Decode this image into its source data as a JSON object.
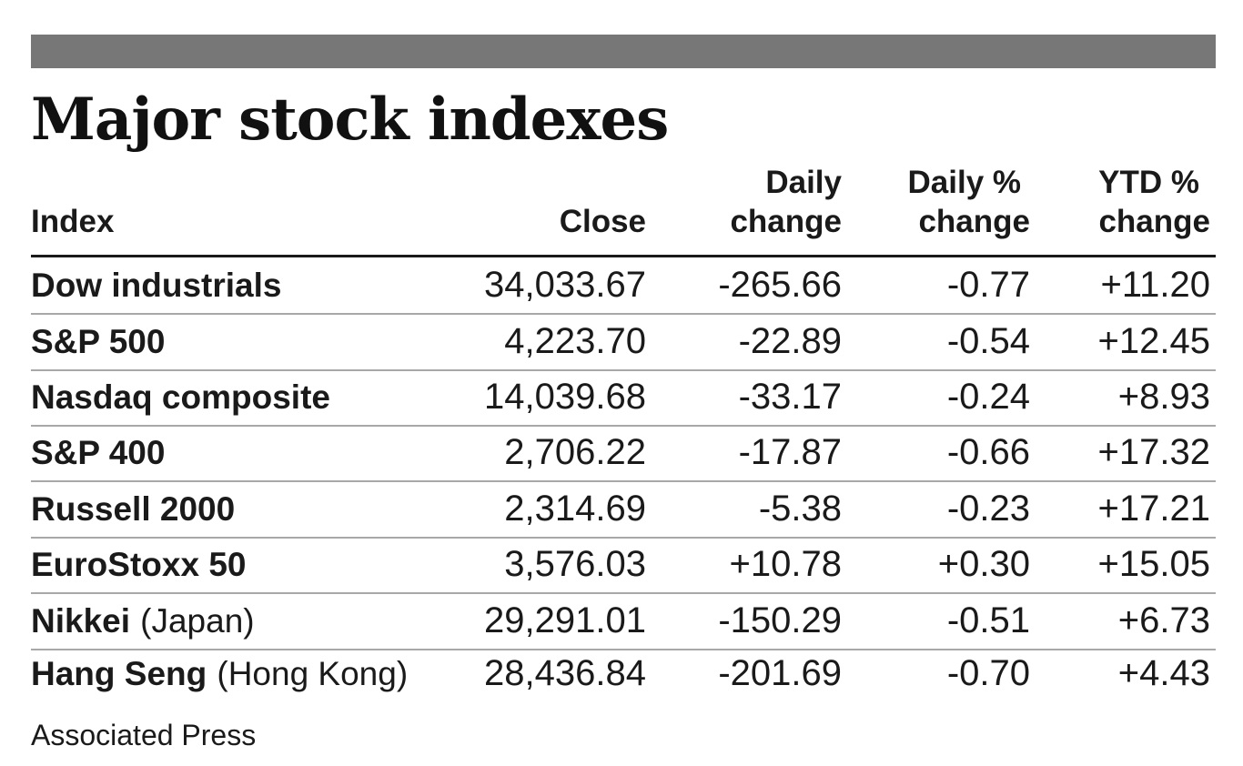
{
  "title": "Major stock indexes",
  "columns": {
    "index": "Index",
    "close": "Close",
    "daily_change": [
      "Daily",
      "change"
    ],
    "daily_pct": [
      "Daily %",
      "change"
    ],
    "ytd_pct": [
      "YTD %",
      "change"
    ]
  },
  "rows": [
    {
      "name": "Dow industrials",
      "region": "",
      "close": "34,033.67",
      "daily_change": "-265.66",
      "daily_pct": "-0.77",
      "ytd_pct": "+11.20"
    },
    {
      "name": "S&P 500",
      "region": "",
      "close": "4,223.70",
      "daily_change": "-22.89",
      "daily_pct": "-0.54",
      "ytd_pct": "+12.45"
    },
    {
      "name": "Nasdaq composite",
      "region": "",
      "close": "14,039.68",
      "daily_change": "-33.17",
      "daily_pct": "-0.24",
      "ytd_pct": "+8.93"
    },
    {
      "name": "S&P 400",
      "region": "",
      "close": "2,706.22",
      "daily_change": "-17.87",
      "daily_pct": "-0.66",
      "ytd_pct": "+17.32"
    },
    {
      "name": "Russell 2000",
      "region": "",
      "close": "2,314.69",
      "daily_change": "-5.38",
      "daily_pct": "-0.23",
      "ytd_pct": "+17.21"
    },
    {
      "name": "EuroStoxx 50",
      "region": "",
      "close": "3,576.03",
      "daily_change": "+10.78",
      "daily_pct": "+0.30",
      "ytd_pct": "+15.05"
    },
    {
      "name": "Nikkei",
      "region": "(Japan)",
      "close": "29,291.01",
      "daily_change": "-150.29",
      "daily_pct": "-0.51",
      "ytd_pct": "+6.73"
    },
    {
      "name": "Hang Seng",
      "region": "(Hong Kong)",
      "close": "28,436.84",
      "daily_change": "-201.69",
      "daily_pct": "-0.70",
      "ytd_pct": "+4.43"
    }
  ],
  "source": "Associated Press",
  "colors": {
    "top_bar": "#777777",
    "text": "#1a1a1a",
    "row_divider": "#a8a8a8"
  }
}
